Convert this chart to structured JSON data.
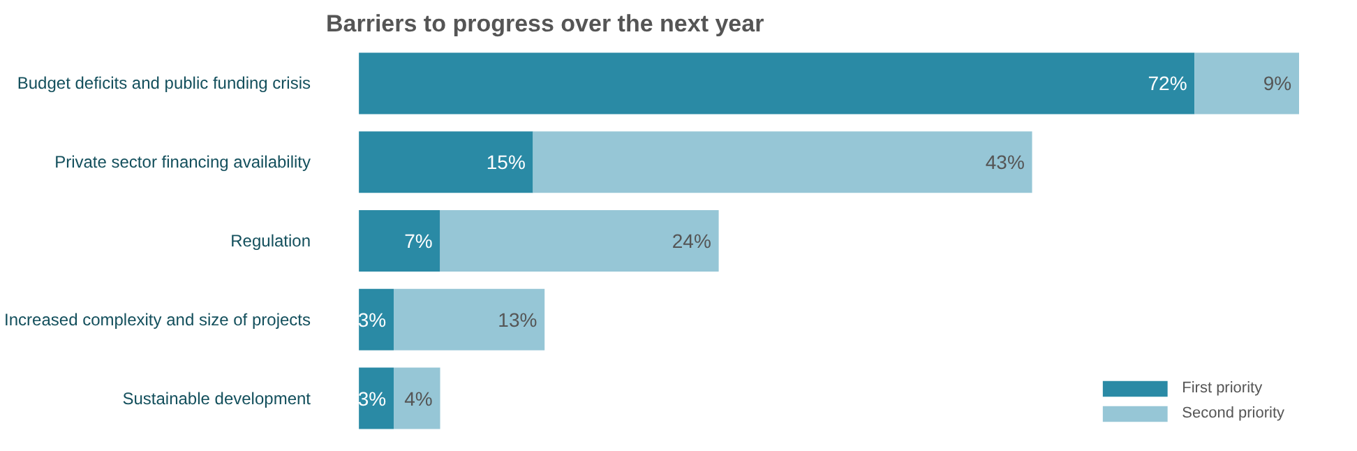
{
  "chart_data": {
    "type": "bar",
    "orientation": "horizontal",
    "stacked": true,
    "title": "Barriers to progress over the next year",
    "categories": [
      "Budget deficits and public funding crisis",
      "Private sector financing availability",
      "Regulation",
      "Increased complexity and size of projects",
      "Sustainable development"
    ],
    "series": [
      {
        "name": "First priority",
        "color": "#2a8aa5",
        "values": [
          72,
          15,
          7,
          3,
          3
        ],
        "value_labels": [
          "72%",
          "15%",
          "7%",
          "3%",
          "3%"
        ]
      },
      {
        "name": "Second priority",
        "color": "#96c6d6",
        "values": [
          9,
          43,
          24,
          13,
          4
        ],
        "value_labels": [
          "9%",
          "43%",
          "24%",
          "13%",
          "4%"
        ]
      }
    ],
    "legend": "bottom right",
    "grid": false
  }
}
